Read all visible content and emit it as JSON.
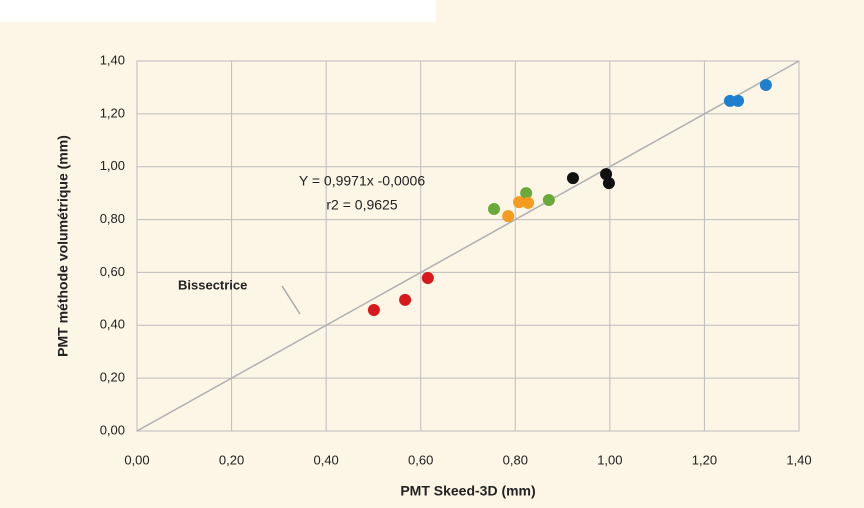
{
  "chart_data": {
    "type": "scatter",
    "xlabel": "PMT Skeed-3D (mm)",
    "ylabel": "PMT méthode volumétrique (mm)",
    "xlim": [
      0,
      1.4
    ],
    "ylim": [
      0,
      1.4
    ],
    "xticks": [
      {
        "value": 0,
        "label": "0,00"
      },
      {
        "value": 0.2,
        "label": "0,20"
      },
      {
        "value": 0.4,
        "label": "0,40"
      },
      {
        "value": 0.6,
        "label": "0,60"
      },
      {
        "value": 0.8,
        "label": "0,80"
      },
      {
        "value": 1.0,
        "label": "1,00"
      },
      {
        "value": 1.2,
        "label": "1,20"
      },
      {
        "value": 1.4,
        "label": "1,40"
      }
    ],
    "yticks": [
      {
        "value": 0,
        "label": "0,00"
      },
      {
        "value": 0.2,
        "label": "0,20"
      },
      {
        "value": 0.4,
        "label": "0,40"
      },
      {
        "value": 0.6,
        "label": "0,60"
      },
      {
        "value": 0.8,
        "label": "0,80"
      },
      {
        "value": 1.0,
        "label": "1,00"
      },
      {
        "value": 1.2,
        "label": "1,20"
      },
      {
        "value": 1.4,
        "label": "1,40"
      }
    ],
    "grid": true,
    "annotations": [
      "Y = 0,9971x -0,0006",
      "r2 = 0,9625",
      "Bissectrice"
    ],
    "series": [
      {
        "color": "#d7191c",
        "x": [
          0.501,
          0.567,
          0.615
        ],
        "values": [
          0.458,
          0.496,
          0.579
        ]
      },
      {
        "color": "#6aaa3a",
        "x": [
          0.755,
          0.823,
          0.871
        ],
        "values": [
          0.84,
          0.9,
          0.874
        ]
      },
      {
        "color": "#f39c1f",
        "x": [
          0.785,
          0.808,
          0.827
        ],
        "values": [
          0.813,
          0.866,
          0.863
        ]
      },
      {
        "color": "#111111",
        "x": [
          0.922,
          0.992,
          0.998
        ],
        "values": [
          0.957,
          0.972,
          0.938
        ]
      },
      {
        "color": "#1f7fcf",
        "x": [
          1.254,
          1.271,
          1.33
        ],
        "values": [
          1.249,
          1.249,
          1.309
        ]
      }
    ]
  }
}
